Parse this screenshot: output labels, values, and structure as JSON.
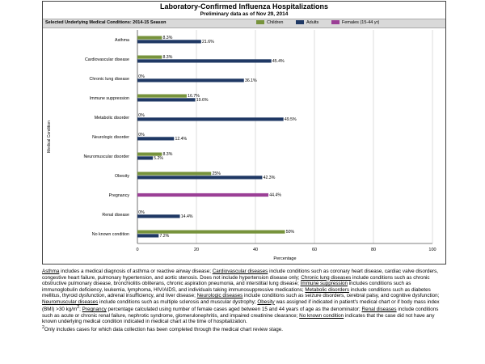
{
  "chart_data": {
    "type": "bar",
    "title": "Laboratory-Confirmed Influenza Hospitalizations",
    "subtitle": "Preliminary data as of Nov 29, 2014",
    "header_label": "Selected Underlying Medical Conditions: 2014-15 Season",
    "ylabel": "Medical Condition",
    "xlabel": "Percentage",
    "xlim": [
      0,
      100
    ],
    "xticks": [
      0,
      20,
      40,
      60,
      80,
      100
    ],
    "orientation": "horizontal",
    "grid": true,
    "legend_position": "top-right",
    "categories": [
      "Asthma",
      "Cardiovascular disease",
      "Chronic lung disease",
      "Immune suppression",
      "Metabolic disorder",
      "Neurologic disorder",
      "Neuromuscular disorder",
      "Obesity",
      "Pregnancy",
      "Renal disease",
      "No known condition"
    ],
    "series": [
      {
        "name": "Children",
        "color": "#77933c",
        "values": [
          8.3,
          8.3,
          0,
          16.7,
          0,
          0,
          8.3,
          25,
          null,
          0,
          50
        ],
        "labels": [
          "8.3%",
          "8.3%",
          "0%",
          "16.7%",
          "0%",
          "0%",
          "8.3%",
          "25%",
          "",
          "0%",
          "50%"
        ]
      },
      {
        "name": "Adults",
        "color": "#1f3864",
        "values": [
          21.6,
          45.4,
          36.1,
          19.6,
          49.5,
          12.4,
          5.2,
          42.3,
          null,
          14.4,
          7.2
        ],
        "labels": [
          "21.6%",
          "45.4%",
          "36.1%",
          "19.6%",
          "49.5%",
          "12.4%",
          "5.2%",
          "42.3%",
          "",
          "14.4%",
          "7.2%"
        ]
      },
      {
        "name": "Females (15-44 yr)",
        "color": "#9b3f96",
        "values": [
          null,
          null,
          null,
          null,
          null,
          null,
          null,
          null,
          44.4,
          null,
          null
        ],
        "labels": [
          "",
          "",
          "",
          "",
          "",
          "",
          "",
          "",
          "44.4%",
          "",
          ""
        ]
      }
    ]
  },
  "footnote": {
    "asthma_term": "Asthma",
    "asthma_def": " includes a medical diagnosis of asthma or reactive airway disease; ",
    "cardio_term": "Cardiovascular diseases",
    "cardio_def": " include conditions such as coronary heart disease, cardiac valve disorders, congestive heart failure, pulmonary hypertension, and aortic stenosis.  Does not include hypertension disease only;  ",
    "lung_term": "Chronic lung diseases",
    "lung_def": " include conditions such as chronic obstructive pulmonary disease, bronchiolitis obliterans, chronic aspiration pneumonia, and interstitial lung disease;  ",
    "immune_term": "Immune suppression",
    "immune_def": " includes conditions such as immunoglobulin deficiency, leukemia, lymphoma, HIV/AIDS, and individuals taking immunosuppressive medications; ",
    "metabolic_term": "Metabolic disorders",
    "metabolic_def": " include conditions such as diabetes mellitus, thyroid dysfunction, adrenal insufficiency, and liver disease;  ",
    "neuro_term": "Neurologic diseases",
    "neuro_def": " include conditions such as seizure disorders, cerebral palsy, and cognitive dysfunction;  ",
    "neuromusc_term": "Neuromuscular diseases",
    "neuromusc_def": " include conditions such as multiple sclerosis and muscular dystrophy;  ",
    "obesity_term": "Obesity",
    "obesity_def": " was assigned if indicated in patient's medical chart or if body mass index (BMI) >30 kg/m",
    "obesity_sup": "2",
    "obesity_end": ";  ",
    "pregnancy_term": "Pregnancy",
    "pregnancy_def": " percentage calculated using number of female cases aged between 15 and 44 years of age as the denominator;  ",
    "renal_term": "Renal diseases",
    "renal_def": " include conditions such as acute or chronic renal failure, nephrotic syndrome, glomerulonephritis, and impaired creatinine clearance;  ",
    "noknown_term": "No known condition",
    "noknown_def": " indicates that the case did not have any known underlying medical condition indicated in medical chart at the time of hospitalization.",
    "note_sup": "2",
    "note_text": "Only includes cases for which data collection has been completed through the medical chart review stage."
  }
}
